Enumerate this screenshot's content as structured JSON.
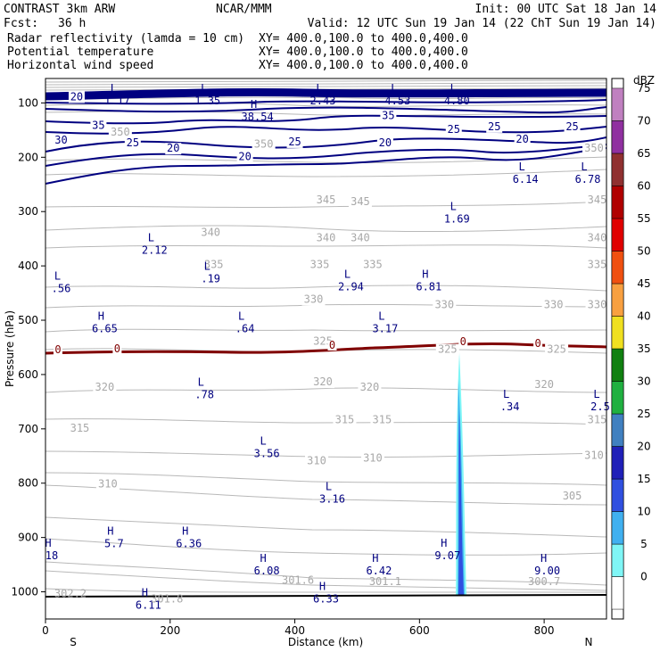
{
  "header": {
    "model": "CONTRAST  3km ARW",
    "center": "NCAR/MMM",
    "init": "Init: 00 UTC Sat 18 Jan 14",
    "fcst_label": "Fcst:",
    "fcst_value": "36 h",
    "valid": "Valid: 12 UTC Sun 19 Jan 14 (22 ChT Sun 19 Jan 14)"
  },
  "legend_lines": [
    {
      "name": "Radar reflectivity (lamda = 10 cm)",
      "xy": "XY= 400.0,100.0 to 400.0,400.0",
      "color": "#000000"
    },
    {
      "name": "Potential temperature",
      "xy": "XY= 400.0,100.0 to 400.0,400.0",
      "color": "#c0c0c0"
    },
    {
      "name": "Horizontal wind speed",
      "xy": "XY= 400.0,100.0 to 400.0,400.0",
      "color": "#000080"
    }
  ],
  "chart_data": {
    "type": "cross-section",
    "xlabel": "Distance (km)",
    "ylabel": "Pressure (hPa)",
    "xlim": [
      0,
      900
    ],
    "ylim": [
      1050,
      55
    ],
    "xticks": [
      0,
      200,
      400,
      600,
      800
    ],
    "yticks": [
      100,
      200,
      300,
      400,
      500,
      600,
      700,
      800,
      900,
      1000
    ],
    "x_end_labels": {
      "left": "S",
      "right": "N"
    },
    "colorbar": {
      "unit": "dBZ",
      "levels": [
        0,
        5,
        10,
        15,
        20,
        25,
        30,
        35,
        40,
        45,
        50,
        55,
        60,
        65,
        70,
        75
      ],
      "colors": [
        "#ffffff",
        "#7ff6f6",
        "#40b0f0",
        "#3050e0",
        "#2020b8",
        "#4080c0",
        "#20b040",
        "#108010",
        "#f0e020",
        "#f8a040",
        "#f05010",
        "#e00000",
        "#b00000",
        "#903030",
        "#9030a0",
        "#c080c0"
      ]
    },
    "theta_labels": [
      {
        "v": "350",
        "x": 120,
        "p": 160
      },
      {
        "v": "350",
        "x": 350,
        "p": 182
      },
      {
        "v": "350",
        "x": 880,
        "p": 190
      },
      {
        "v": "345",
        "x": 450,
        "p": 285
      },
      {
        "v": "345",
        "x": 505,
        "p": 288
      },
      {
        "v": "345",
        "x": 885,
        "p": 285
      },
      {
        "v": "340",
        "x": 265,
        "p": 345
      },
      {
        "v": "340",
        "x": 450,
        "p": 355
      },
      {
        "v": "340",
        "x": 505,
        "p": 355
      },
      {
        "v": "340",
        "x": 885,
        "p": 355
      },
      {
        "v": "335",
        "x": 270,
        "p": 404
      },
      {
        "v": "335",
        "x": 440,
        "p": 404
      },
      {
        "v": "335",
        "x": 525,
        "p": 404
      },
      {
        "v": "335",
        "x": 885,
        "p": 404
      },
      {
        "v": "330",
        "x": 430,
        "p": 468
      },
      {
        "v": "330",
        "x": 640,
        "p": 478
      },
      {
        "v": "330",
        "x": 815,
        "p": 478
      },
      {
        "v": "330",
        "x": 885,
        "p": 478
      },
      {
        "v": "325",
        "x": 445,
        "p": 545
      },
      {
        "v": "325",
        "x": 645,
        "p": 560
      },
      {
        "v": "325",
        "x": 820,
        "p": 560
      },
      {
        "v": "320",
        "x": 95,
        "p": 630
      },
      {
        "v": "320",
        "x": 445,
        "p": 620
      },
      {
        "v": "320",
        "x": 520,
        "p": 630
      },
      {
        "v": "320",
        "x": 800,
        "p": 625
      },
      {
        "v": "315",
        "x": 55,
        "p": 705
      },
      {
        "v": "315",
        "x": 480,
        "p": 690
      },
      {
        "v": "315",
        "x": 540,
        "p": 690
      },
      {
        "v": "315",
        "x": 885,
        "p": 690
      },
      {
        "v": "310",
        "x": 435,
        "p": 765
      },
      {
        "v": "310",
        "x": 525,
        "p": 760
      },
      {
        "v": "310",
        "x": 880,
        "p": 755
      },
      {
        "v": "305",
        "x": 845,
        "p": 830
      },
      {
        "v": "310",
        "x": 100,
        "p": 808
      }
    ],
    "wind_labels": [
      {
        "v": "20",
        "x": 50,
        "p": 95
      },
      {
        "v": "35",
        "x": 85,
        "p": 148
      },
      {
        "v": "30",
        "x": 25,
        "p": 175
      },
      {
        "v": "25",
        "x": 140,
        "p": 180
      },
      {
        "v": "20",
        "x": 205,
        "p": 190
      },
      {
        "v": "20",
        "x": 320,
        "p": 205
      },
      {
        "v": "25",
        "x": 400,
        "p": 178
      },
      {
        "v": "35",
        "x": 550,
        "p": 130
      },
      {
        "v": "25",
        "x": 655,
        "p": 155
      },
      {
        "v": "25",
        "x": 720,
        "p": 150
      },
      {
        "v": "20",
        "x": 765,
        "p": 173
      },
      {
        "v": "25",
        "x": 845,
        "p": 150
      },
      {
        "v": "20",
        "x": 545,
        "p": 180
      }
    ],
    "freezing_label": "0",
    "hl_markers": [
      {
        "t": "L",
        "v": "1.17",
        "x": 115,
        "p": 103
      },
      {
        "t": "L",
        "v": "1.35",
        "x": 260,
        "p": 103
      },
      {
        "t": "H",
        "v": "38.54",
        "x": 340,
        "p": 132
      },
      {
        "t": "L",
        "v": "2.43",
        "x": 445,
        "p": 103
      },
      {
        "t": "L",
        "v": "4.53",
        "x": 565,
        "p": 103
      },
      {
        "t": "L",
        "v": "4.80",
        "x": 660,
        "p": 103
      },
      {
        "t": "L",
        "v": "6.14",
        "x": 770,
        "p": 247
      },
      {
        "t": "L",
        "v": "6.78",
        "x": 870,
        "p": 247
      },
      {
        "t": "L",
        "v": "1.69",
        "x": 660,
        "p": 320
      },
      {
        "t": "L",
        "v": "2.12",
        "x": 175,
        "p": 378
      },
      {
        "t": "L",
        "v": ".19",
        "x": 265,
        "p": 430
      },
      {
        "t": "L",
        "v": ".56",
        "x": 25,
        "p": 448
      },
      {
        "t": "L",
        "v": "2.94",
        "x": 490,
        "p": 445
      },
      {
        "t": "H",
        "v": "6.81",
        "x": 615,
        "p": 445
      },
      {
        "t": "H",
        "v": "6.65",
        "x": 95,
        "p": 522
      },
      {
        "t": "L",
        "v": ".64",
        "x": 320,
        "p": 522
      },
      {
        "t": "L",
        "v": "3.17",
        "x": 545,
        "p": 522
      },
      {
        "t": "L",
        "v": ".78",
        "x": 255,
        "p": 644
      },
      {
        "t": "L",
        "v": ".34",
        "x": 745,
        "p": 666
      },
      {
        "t": "L",
        "v": "2.5",
        "x": 890,
        "p": 666
      },
      {
        "t": "L",
        "v": "3.56",
        "x": 355,
        "p": 752
      },
      {
        "t": "L",
        "v": "3.16",
        "x": 460,
        "p": 836
      },
      {
        "t": "H",
        "v": "5.7",
        "x": 110,
        "p": 918
      },
      {
        "t": "H",
        "v": "6.36",
        "x": 230,
        "p": 918
      },
      {
        "t": "H",
        "v": "18",
        "x": 10,
        "p": 940
      },
      {
        "t": "H",
        "v": "9.07",
        "x": 645,
        "p": 940
      },
      {
        "t": "H",
        "v": "6.08",
        "x": 355,
        "p": 968
      },
      {
        "t": "H",
        "v": "6.42",
        "x": 535,
        "p": 968
      },
      {
        "t": "H",
        "v": "9.00",
        "x": 805,
        "p": 968
      },
      {
        "t": "H",
        "v": "6.33",
        "x": 450,
        "p": 1020
      },
      {
        "t": "H",
        "v": "6.11",
        "x": 165,
        "p": 1031
      }
    ],
    "surface_theta_labels": [
      {
        "v": "302.2",
        "x": 40,
        "p": 1010
      },
      {
        "v": "301.6",
        "x": 405,
        "p": 985
      },
      {
        "v": "301.1",
        "x": 545,
        "p": 988
      },
      {
        "v": "300.7",
        "x": 800,
        "p": 988
      },
      {
        "v": "301.8",
        "x": 195,
        "p": 1020
      }
    ]
  }
}
